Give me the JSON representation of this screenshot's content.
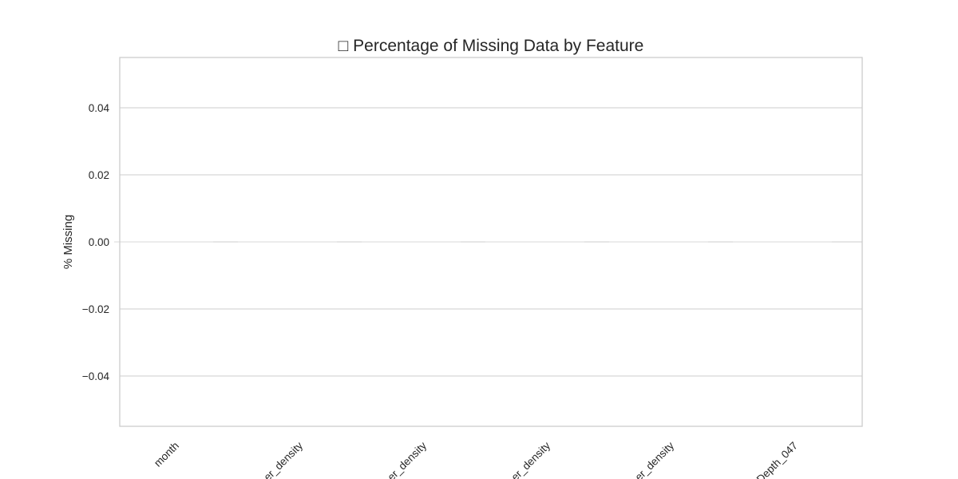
{
  "chart_data": {
    "type": "bar",
    "title": "□ Percentage of Missing Data by Feature",
    "xlabel": "",
    "ylabel": "% Missing",
    "categories": [
      "month",
      "…er_density",
      "…er_density",
      "…er_density",
      "…er_density",
      "…Depth_047"
    ],
    "values": [
      0,
      0,
      0,
      0,
      0,
      0
    ],
    "ylim": [
      -0.055,
      0.055
    ],
    "yticks": [
      -0.04,
      -0.02,
      0.0,
      0.02,
      0.04
    ],
    "ytick_labels": [
      "−0.04",
      "−0.02",
      "0.00",
      "0.02",
      "0.04"
    ],
    "grid": true,
    "legend": "none",
    "colors": {
      "grid": "#cccccc",
      "frame": "#cccccc",
      "text": "#262626",
      "bar": "#d9d9d9"
    }
  }
}
